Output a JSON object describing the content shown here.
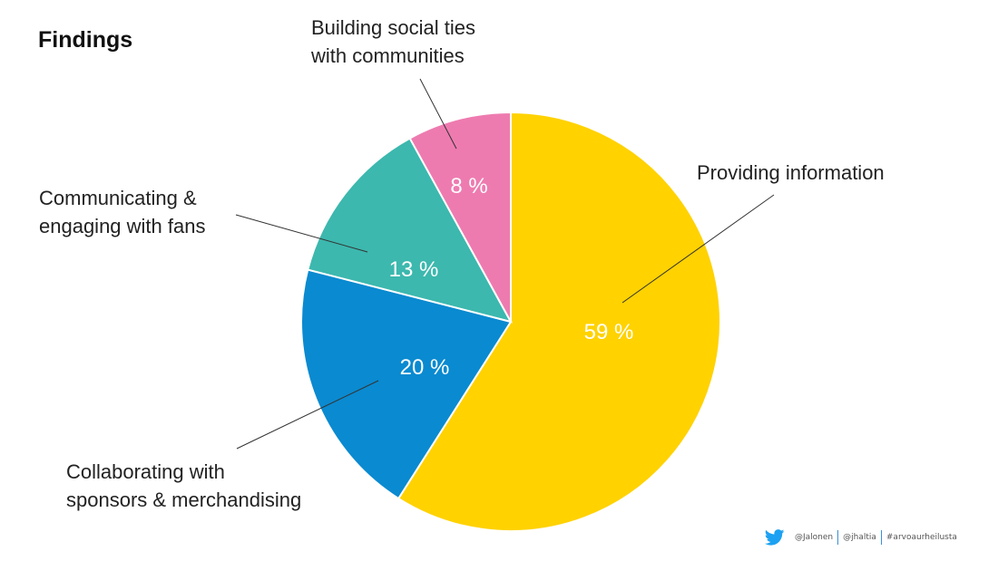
{
  "page": {
    "title": "Findings"
  },
  "chart_data": {
    "type": "pie",
    "slices": [
      {
        "label_lines": [
          "Providing information"
        ],
        "value": 59,
        "display": "59 %",
        "color": "#FFD200"
      },
      {
        "label_lines": [
          "Collaborating with",
          "sponsors & merchandising"
        ],
        "value": 20,
        "display": "20 %",
        "color": "#0A8AD0"
      },
      {
        "label_lines": [
          "Communicating &",
          "engaging with fans"
        ],
        "value": 13,
        "display": "13 %",
        "color": "#3CB8AE"
      },
      {
        "label_lines": [
          "Building social ties",
          "with communities"
        ],
        "value": 8,
        "display": "8 %",
        "color": "#EE7BB0"
      }
    ]
  },
  "footer": {
    "icon": "twitter-bird-icon",
    "icon_color": "#1DA1F2",
    "handles": [
      "@Jalonen",
      "@jhaltia",
      "#arvoaurheilusta"
    ]
  }
}
